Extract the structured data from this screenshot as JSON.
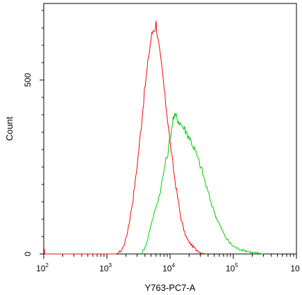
{
  "chart_data": {
    "type": "line",
    "title": "",
    "xlabel": "Y763-PC7-A",
    "ylabel": "Count",
    "x_scale": "log",
    "xlim": [
      100,
      1000000
    ],
    "ylim": [
      0,
      720
    ],
    "x_ticks": [
      {
        "base": "10",
        "exp": "2"
      },
      {
        "base": "10",
        "exp": "3"
      },
      {
        "base": "10",
        "exp": "4"
      },
      {
        "base": "10",
        "exp": "5"
      },
      {
        "base": "10",
        "exp": ""
      }
    ],
    "y_ticks": [
      {
        "value": 0,
        "label": "0"
      },
      {
        "value": 500,
        "label": "500"
      }
    ],
    "grid": false,
    "legend": "none",
    "series": [
      {
        "color": "#ff0000",
        "x": [
          100,
          102,
          104,
          1400,
          1700,
          1900,
          2100,
          2300,
          2600,
          2900,
          3200,
          3500,
          3800,
          4200,
          4600,
          5000,
          5400,
          5800,
          6000,
          6300,
          6800,
          7300,
          7800,
          8300,
          9000,
          10000,
          11000,
          12000,
          13500,
          15000,
          17000,
          19000,
          22000,
          26000,
          30000,
          36000
        ],
        "y": [
          15,
          10,
          0,
          0,
          10,
          30,
          60,
          100,
          160,
          230,
          300,
          370,
          440,
          510,
          570,
          620,
          645,
          650,
          665,
          630,
          580,
          540,
          500,
          450,
          400,
          320,
          260,
          210,
          150,
          100,
          60,
          40,
          25,
          12,
          5,
          0
        ]
      },
      {
        "color": "#00cc00",
        "x": [
          3500,
          3900,
          4400,
          4900,
          5500,
          6100,
          6800,
          7500,
          8300,
          9200,
          10200,
          11200,
          12500,
          14000,
          15500,
          17500,
          19500,
          22000,
          25000,
          28000,
          32000,
          36000,
          41000,
          47000,
          54000,
          62000,
          72000,
          85000,
          100000,
          120000,
          150000,
          190000,
          250000,
          300000
        ],
        "y": [
          0,
          15,
          40,
          80,
          110,
          140,
          170,
          210,
          255,
          290,
          345,
          390,
          395,
          380,
          370,
          355,
          340,
          320,
          295,
          270,
          240,
          205,
          170,
          135,
          105,
          80,
          55,
          35,
          22,
          15,
          10,
          5,
          2,
          0
        ]
      }
    ]
  }
}
